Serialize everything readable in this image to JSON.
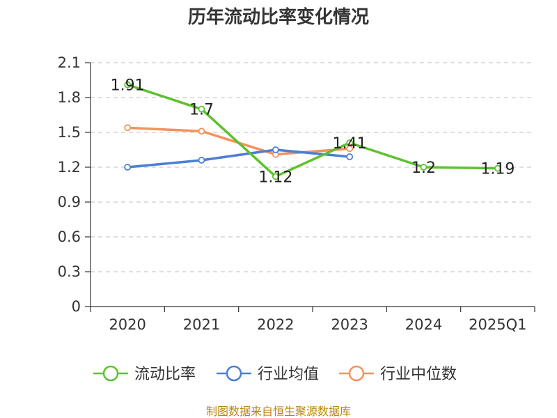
{
  "chart_data": {
    "type": "line",
    "title": "历年流动比率变化情况",
    "categories": [
      "2020",
      "2021",
      "2022",
      "2023",
      "2024",
      "2025Q1"
    ],
    "ylim": [
      0,
      2.1
    ],
    "yticks": [
      "0",
      "0.3",
      "0.6",
      "0.9",
      "1.2",
      "1.5",
      "1.8",
      "2.1"
    ],
    "grid": true,
    "legend_position": "bottom",
    "series": [
      {
        "name": "流动比率",
        "color": "#5cc22e",
        "values": [
          1.91,
          1.7,
          1.12,
          1.41,
          1.2,
          1.19
        ],
        "labels": [
          "1.91",
          "1.7",
          "1.12",
          "1.41",
          "1.2",
          "1.19"
        ]
      },
      {
        "name": "行业均值",
        "color": "#4a7fd6",
        "values": [
          1.2,
          1.26,
          1.35,
          1.29,
          null,
          null
        ]
      },
      {
        "name": "行业中位数",
        "color": "#f5915c",
        "values": [
          1.54,
          1.51,
          1.31,
          1.36,
          null,
          null
        ]
      }
    ],
    "source": "制图数据来自恒生聚源数据库"
  }
}
